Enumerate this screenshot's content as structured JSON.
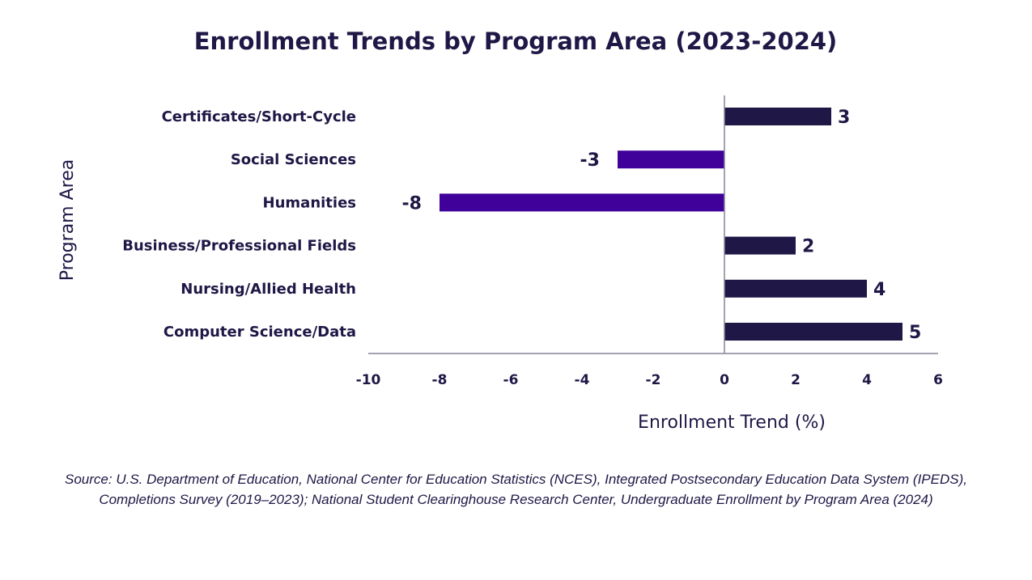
{
  "chart_data": {
    "type": "bar",
    "orientation": "horizontal",
    "title": "Enrollment Trends by Program Area (2023-2024)",
    "xlabel": "Enrollment Trend (%)",
    "ylabel": "Program Area",
    "categories": [
      "Certificates/Short-Cycle",
      "Social Sciences",
      "Humanities",
      "Business/Professional Fields",
      "Nursing/Allied Health",
      "Computer Science/Data"
    ],
    "values": [
      3,
      -3,
      -8,
      2,
      4,
      5
    ],
    "data_labels": [
      "3",
      "-3",
      "-8",
      "2",
      "4",
      "5"
    ],
    "xlim": [
      -10,
      6
    ],
    "xticks": [
      -10,
      -8,
      -6,
      -4,
      -2,
      0,
      2,
      4,
      6
    ],
    "xtick_labels": [
      "-10",
      "-8",
      "-6",
      "-4",
      "-2",
      "0",
      "2",
      "4",
      "6"
    ],
    "grid": false,
    "colors": {
      "positive": "#1f1746",
      "negative": "#40009a",
      "axis": "#8a8499"
    }
  },
  "source": [
    "Source: U.S. Department of Education, National Center for Education Statistics (NCES), Integrated Postsecondary Education Data System (IPEDS),",
    "Completions Survey (2019–2023); National Student Clearinghouse Research Center, Undergraduate Enrollment by Program Area (2024)"
  ]
}
